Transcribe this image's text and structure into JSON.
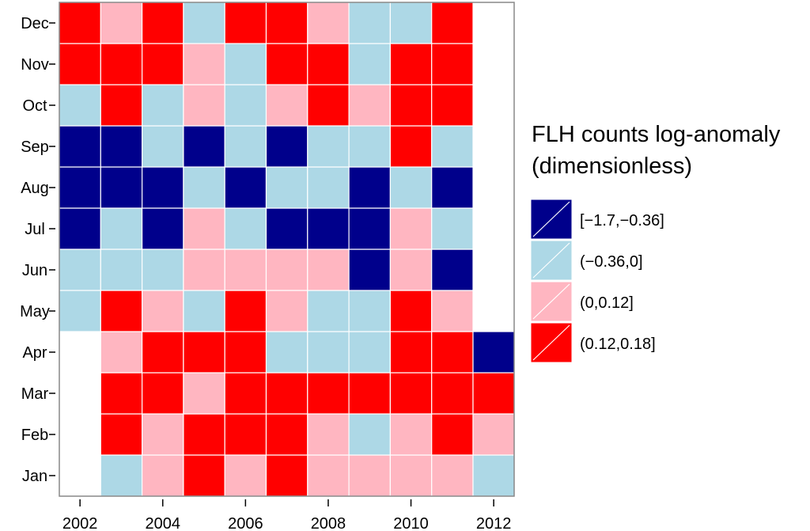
{
  "chart_data": {
    "type": "heatmap",
    "x_years": [
      2002,
      2003,
      2004,
      2005,
      2006,
      2007,
      2008,
      2009,
      2010,
      2011,
      2012
    ],
    "x_tick_labels": [
      "2002",
      "2004",
      "2006",
      "2008",
      "2010",
      "2012"
    ],
    "y_months": [
      "Jan",
      "Feb",
      "Mar",
      "Apr",
      "May",
      "Jun",
      "Jul",
      "Aug",
      "Sep",
      "Oct",
      "Nov",
      "Dec"
    ],
    "legend_title": [
      "FLH counts log-anomaly",
      "(dimensionless)"
    ],
    "bins": [
      {
        "label": "[−1.7,−0.36]",
        "color": "#00008b"
      },
      {
        "label": "(−0.36,0]",
        "color": "#add8e6"
      },
      {
        "label": "(0,0.12]",
        "color": "#ffb6c1"
      },
      {
        "label": "(0.12,0.18]",
        "color": "#ff0000"
      }
    ],
    "cells_bin_index_by_month": {
      "Jan": [
        null,
        1,
        2,
        3,
        2,
        3,
        2,
        2,
        2,
        2,
        1
      ],
      "Feb": [
        null,
        3,
        2,
        3,
        3,
        3,
        2,
        1,
        2,
        3,
        2
      ],
      "Mar": [
        null,
        3,
        3,
        2,
        3,
        3,
        3,
        3,
        3,
        3,
        3
      ],
      "Apr": [
        null,
        2,
        3,
        3,
        3,
        1,
        1,
        1,
        3,
        3,
        0
      ],
      "May": [
        1,
        3,
        2,
        1,
        3,
        2,
        1,
        1,
        3,
        2,
        null
      ],
      "Jun": [
        1,
        1,
        1,
        2,
        2,
        2,
        2,
        0,
        2,
        0,
        null
      ],
      "Jul": [
        0,
        1,
        0,
        2,
        1,
        0,
        0,
        0,
        2,
        1,
        null
      ],
      "Aug": [
        0,
        0,
        0,
        1,
        0,
        1,
        1,
        0,
        1,
        0,
        null
      ],
      "Sep": [
        0,
        0,
        1,
        0,
        1,
        0,
        1,
        1,
        3,
        1,
        null
      ],
      "Oct": [
        1,
        3,
        1,
        2,
        1,
        2,
        3,
        2,
        3,
        3,
        null
      ],
      "Nov": [
        3,
        3,
        3,
        2,
        1,
        3,
        3,
        1,
        3,
        3,
        null
      ],
      "Dec": [
        3,
        2,
        3,
        1,
        3,
        3,
        2,
        1,
        1,
        3,
        null
      ]
    }
  }
}
